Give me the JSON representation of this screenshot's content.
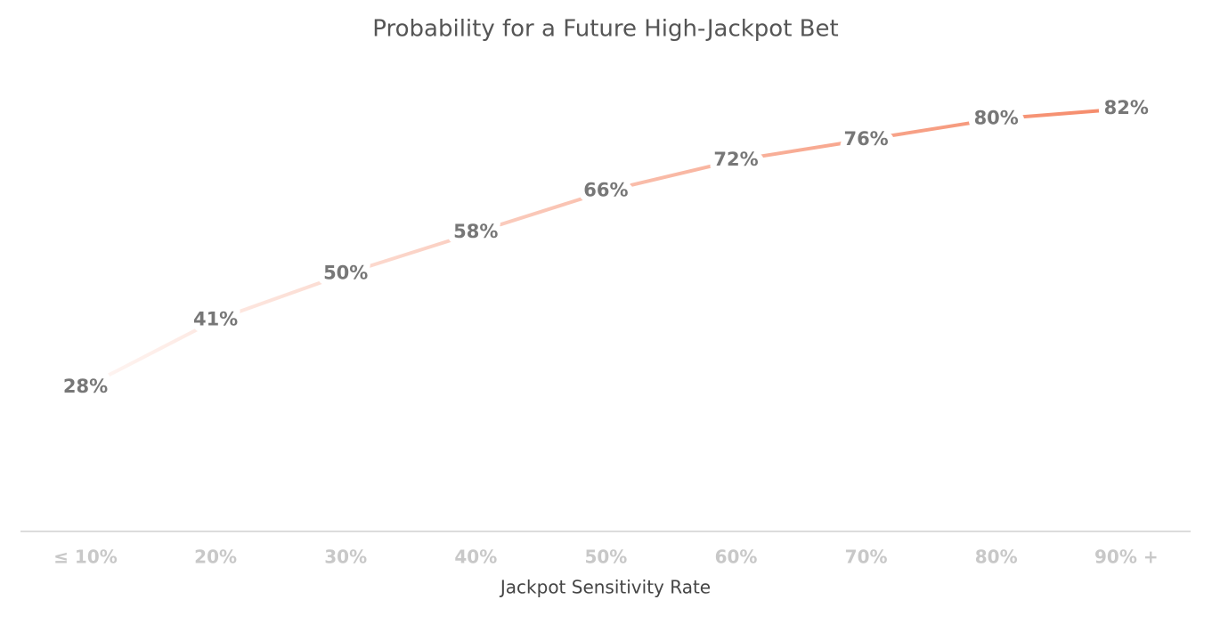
{
  "chart_data": {
    "type": "line",
    "title": "Probability for a Future High-Jackpot Bet",
    "x_label": "Jackpot Sensitivity Rate",
    "categories": [
      "≤ 10%",
      "20%",
      "30%",
      "40%",
      "50%",
      "60%",
      "70%",
      "80%",
      "90% +"
    ],
    "values": [
      28,
      41,
      50,
      58,
      66,
      72,
      76,
      80,
      82
    ],
    "value_labels": [
      "28%",
      "41%",
      "50%",
      "58%",
      "66%",
      "72%",
      "76%",
      "80%",
      "82%"
    ],
    "color": "#f58a69"
  }
}
